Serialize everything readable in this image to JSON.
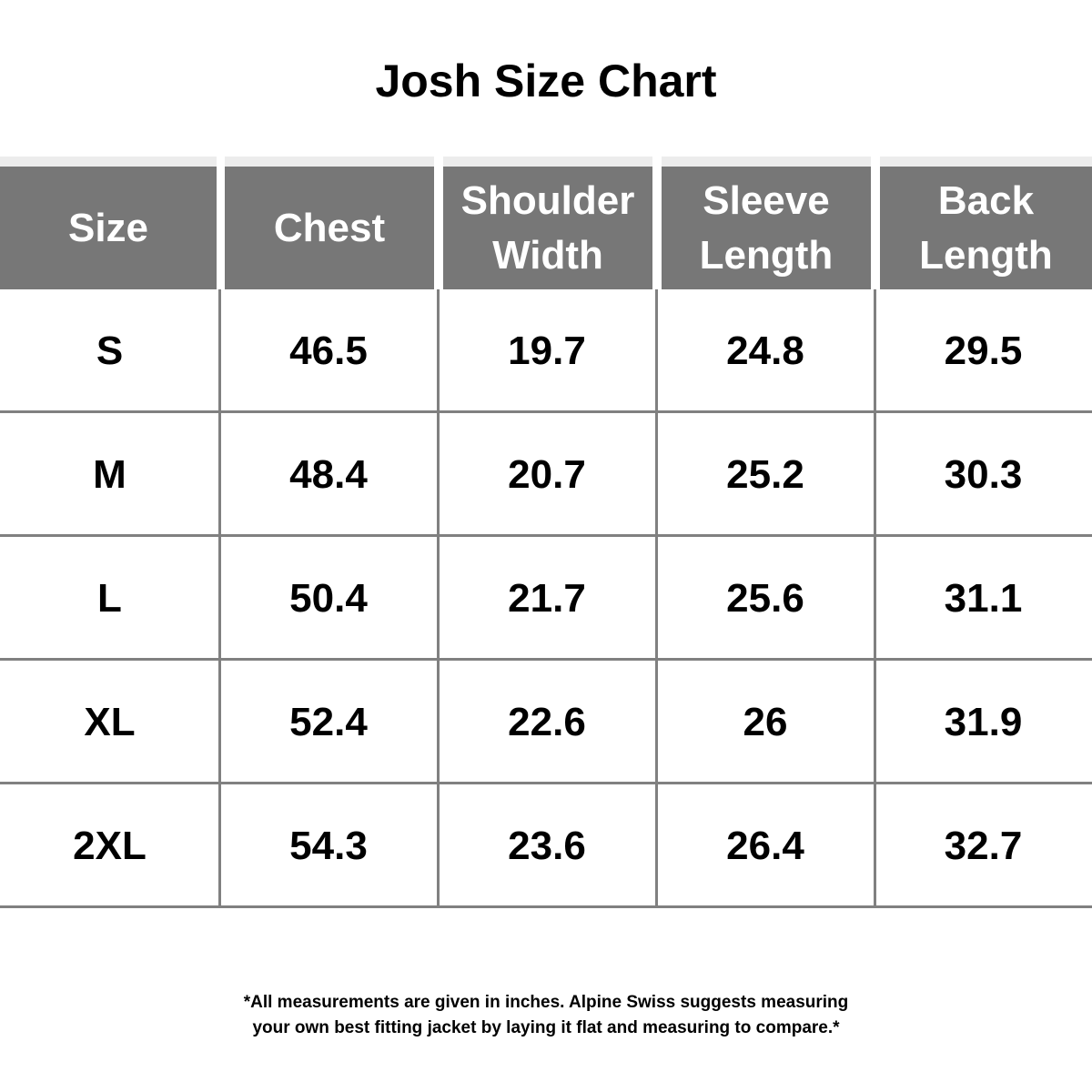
{
  "title": "Josh Size Chart",
  "table": {
    "header": [
      "Size",
      "Chest",
      "Shoulder Width",
      "Sleeve Length",
      "Back Length"
    ],
    "rows": [
      [
        "S",
        "46.5",
        "19.7",
        "24.8",
        "29.5"
      ],
      [
        "M",
        "48.4",
        "20.7",
        "25.2",
        "30.3"
      ],
      [
        "L",
        "50.4",
        "21.7",
        "25.6",
        "31.1"
      ],
      [
        "XL",
        "52.4",
        "22.6",
        "26",
        "31.9"
      ],
      [
        "2XL",
        "54.3",
        "23.6",
        "26.4",
        "32.7"
      ]
    ]
  },
  "note": [
    "*All measurements are given in inches.  Alpine Swiss suggests measuring",
    "your own best fitting jacket by laying it flat and measuring to compare.*"
  ]
}
